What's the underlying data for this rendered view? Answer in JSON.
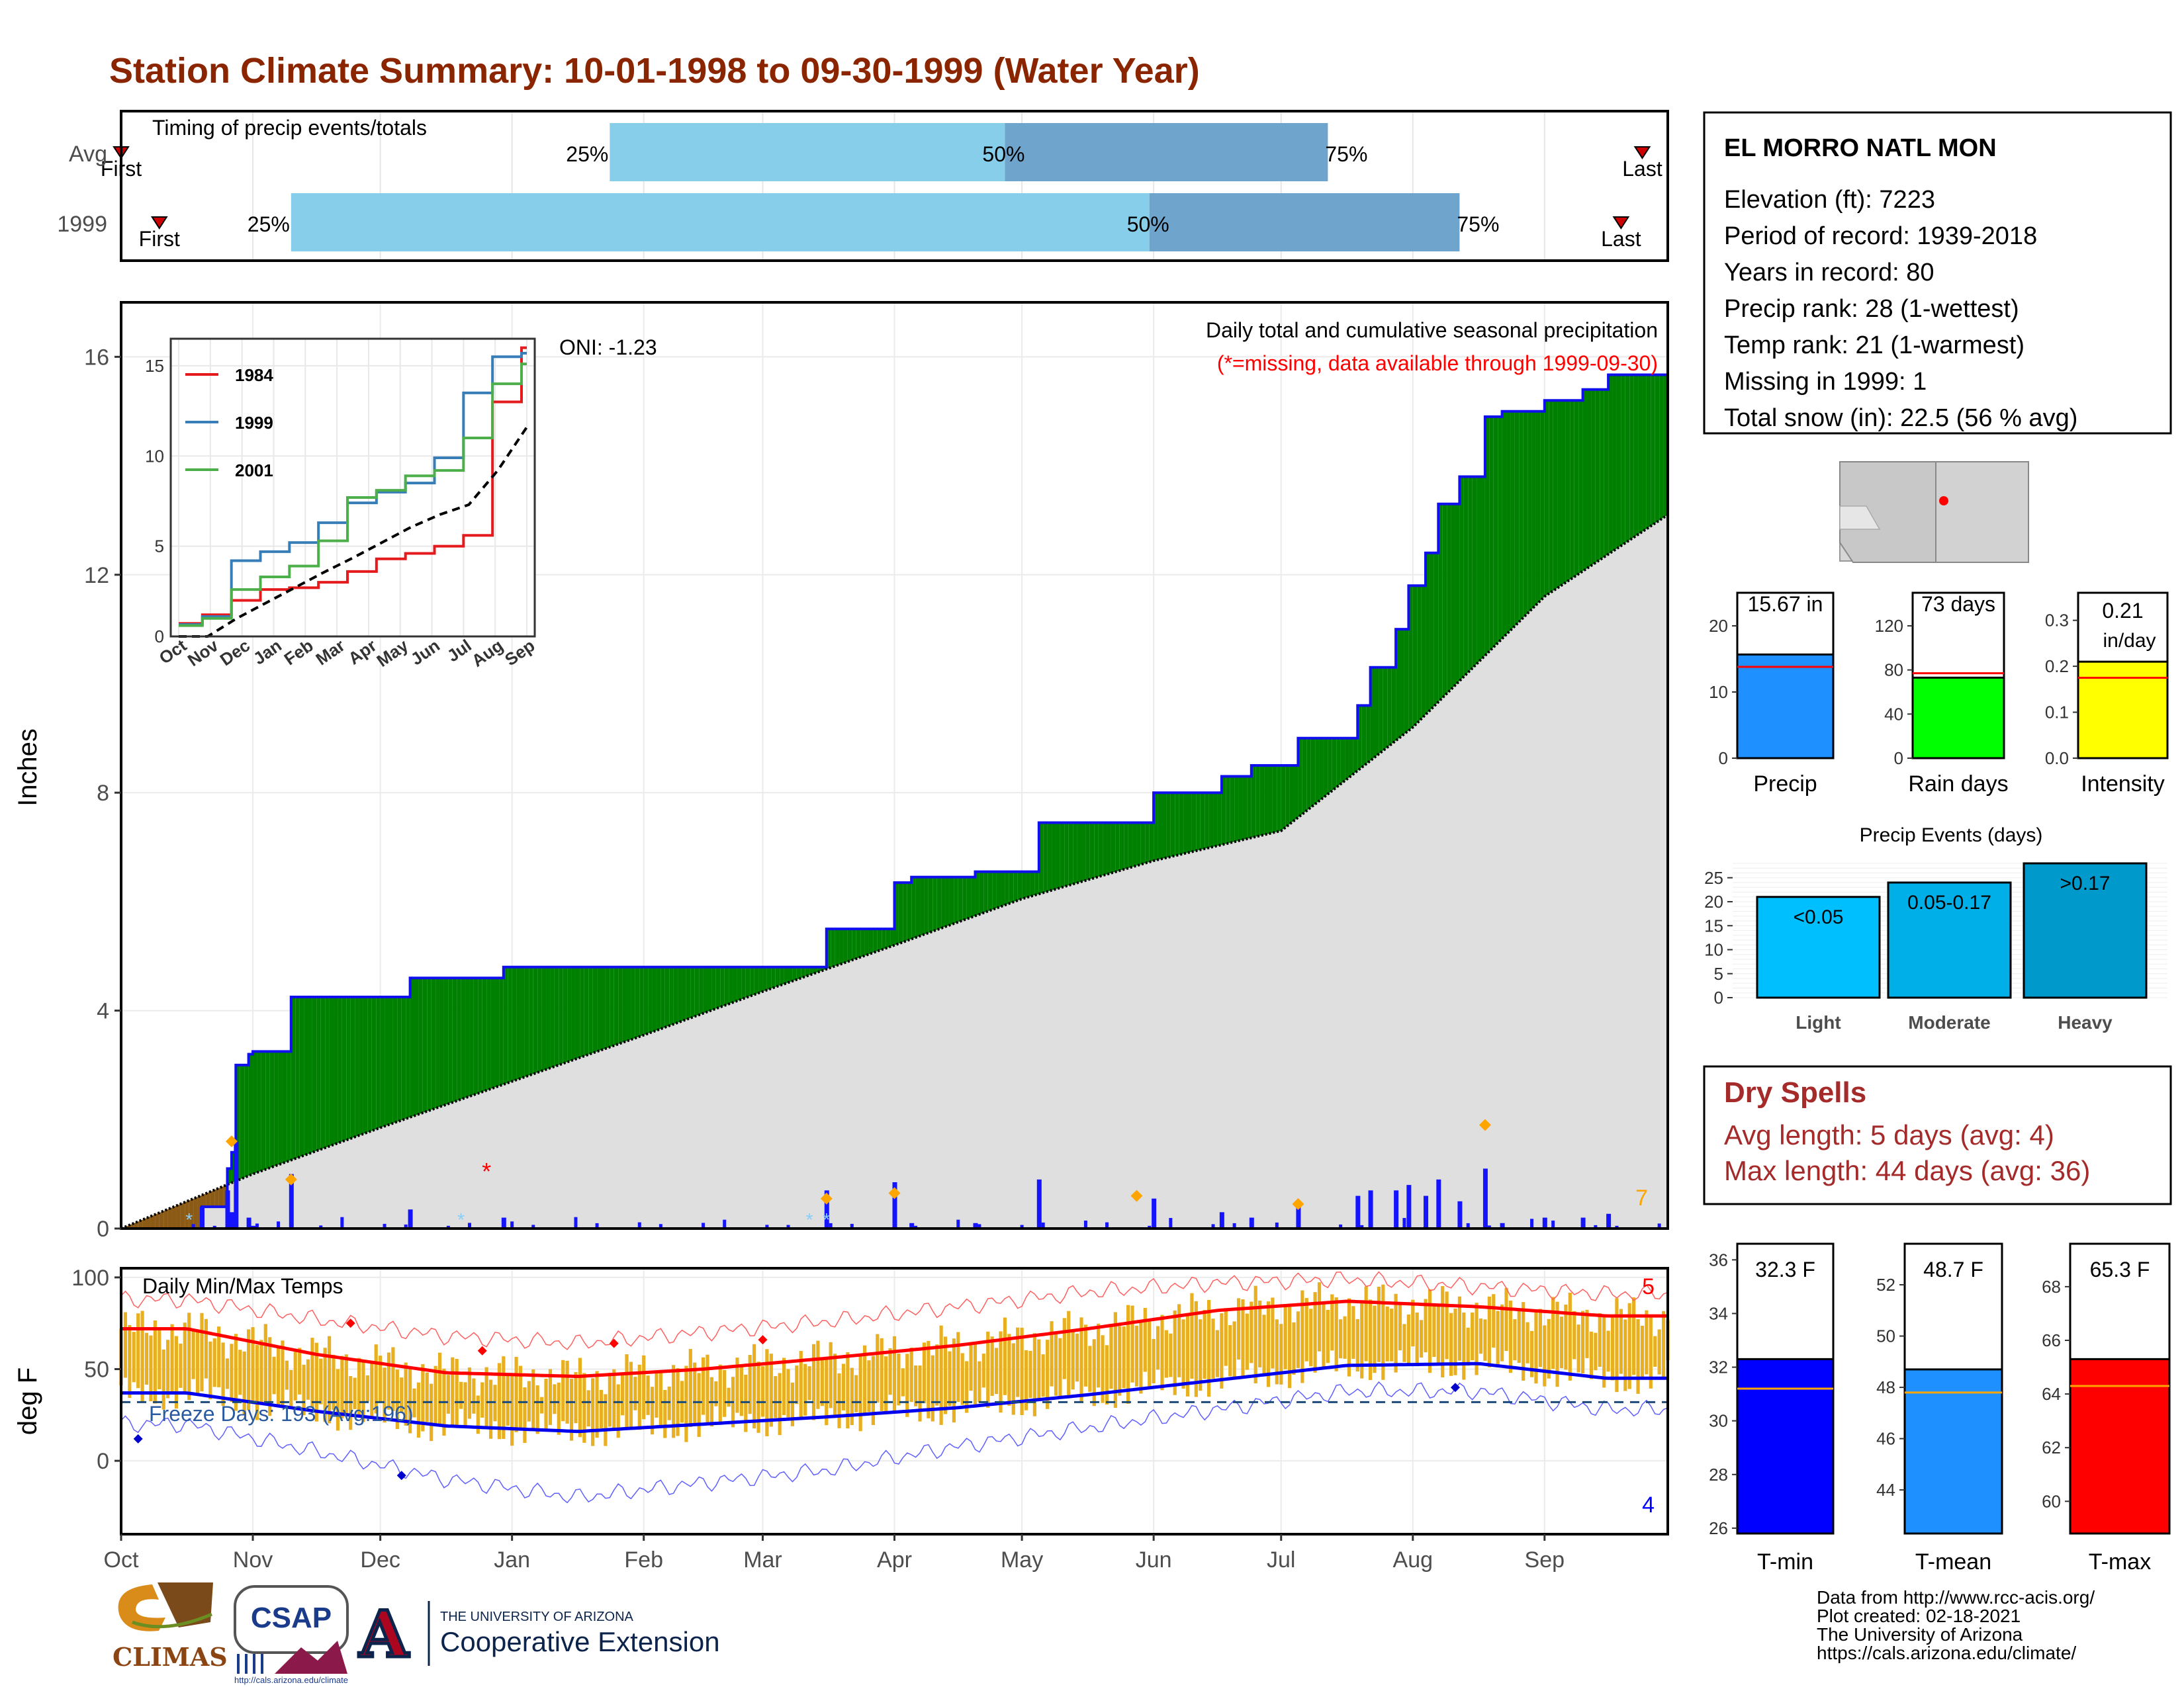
{
  "title": "Station Climate Summary: 10-01-1998 to 09-30-1999 (Water Year)",
  "colors": {
    "title": "#8b2500",
    "timing_light": "#87ceeb",
    "timing_dark": "#6fa4cc",
    "green_fill": "#008000",
    "avg_fill": "#dfdfdf",
    "brown_fill": "#8b5a14",
    "daily_bar": "#1414ff",
    "red": "#ff0000",
    "orange": "#ffa500",
    "temp_bar": "#e8b020",
    "dry_spell_text": "#a52a2a"
  },
  "timing": {
    "title": "Timing of precip events/totals",
    "rows": [
      {
        "label": "Avg",
        "first": "2000-10-01",
        "p25": "2001-01-24",
        "p50": "2001-04-27",
        "p75": "2001-07-12",
        "last": "2001-09-24",
        "first_label": "First",
        "last_label": "Last",
        "p25_label": "25%",
        "p50_label": "50%",
        "p75_label": "75%"
      },
      {
        "label": "1999",
        "first": "1998-10-10",
        "p25": "1998-11-10",
        "p50": "1999-05-31",
        "p75": "1999-08-12",
        "last": "1999-09-19",
        "first_label": "First",
        "last_label": "Last",
        "p25_label": "25%",
        "p50_label": "50%",
        "p75_label": "75%"
      }
    ]
  },
  "main": {
    "ylabel": "Inches",
    "yticks": [
      0,
      4,
      8,
      12,
      16
    ],
    "oni": "ONI: -1.23",
    "subtitle": "Daily total and cumulative seasonal precipitation",
    "note": "(*=missing, data available through 1999-09-30)",
    "count_label": "7"
  },
  "inset": {
    "yticks": [
      0,
      5,
      10,
      15
    ],
    "months": [
      "Oct",
      "Nov",
      "Dec",
      "Jan",
      "Feb",
      "Mar",
      "Apr",
      "May",
      "Jun",
      "Jul",
      "Aug",
      "Sep"
    ],
    "legend": [
      {
        "name": "1984",
        "color": "#e41a1c"
      },
      {
        "name": "1999",
        "color": "#377eb8"
      },
      {
        "name": "2001",
        "color": "#4daf4a"
      }
    ]
  },
  "temps": {
    "ylabel": "deg F",
    "title": "Daily Min/Max Temps",
    "yticks": [
      0,
      50,
      100
    ],
    "freeze_label": "Freeze Days: 193 (Avg:196)",
    "count_hi": "5",
    "count_lo": "4"
  },
  "x_months": [
    "Oct",
    "Nov",
    "Dec",
    "Jan",
    "Feb",
    "Mar",
    "Apr",
    "May",
    "Jun",
    "Jul",
    "Aug",
    "Sep"
  ],
  "station": {
    "name": "EL MORRO NATL MON",
    "lines": [
      "Elevation (ft): 7223",
      "Period of record: 1939-2018",
      "Years in record: 80",
      "Precip rank: 28 (1-wettest)",
      "Temp rank: 21 (1-warmest)",
      "Missing in 1999: 1",
      "Total snow (in): 22.5 (56 % avg)"
    ]
  },
  "small_bars": [
    {
      "xlabel": "Precip",
      "value_label": "15.67 in",
      "value": 15.67,
      "avg": 13.8,
      "ymax": 25,
      "ticks": [
        0,
        10,
        20
      ],
      "color": "#1e90ff"
    },
    {
      "xlabel": "Rain days",
      "value_label": "73 days",
      "value": 73,
      "avg": 77,
      "ymax": 150,
      "ticks": [
        0,
        40,
        80,
        120
      ],
      "color": "#00ff00"
    },
    {
      "xlabel": "Intensity",
      "value_label": "0.21",
      "value_label2": "in/day",
      "value": 0.21,
      "avg": 0.175,
      "ymax": 0.36,
      "ticks": [
        "0.0",
        "0.1",
        "0.2",
        "0.3"
      ],
      "color": "#ffff00"
    }
  ],
  "events": {
    "title": "Precip Events (days)",
    "yticks": [
      0,
      5,
      10,
      15,
      20,
      25
    ],
    "bars": [
      {
        "category": "Light",
        "label": "<0.05",
        "value": 21,
        "color": "#00bfff"
      },
      {
        "category": "Moderate",
        "label": "0.05-0.17",
        "value": 24,
        "color": "#00aee8"
      },
      {
        "category": "Heavy",
        "label": ">0.17",
        "value": 28,
        "color": "#0099cc"
      }
    ]
  },
  "dry_spells": {
    "title": "Dry Spells",
    "avg_line": "Avg length: 5 days (avg: 4)",
    "max_line": "Max length: 44 days (avg: 36)"
  },
  "temp_bars": [
    {
      "xlabel": "T-min",
      "value_label": "32.3 F",
      "value": 32.3,
      "avg": 31.2,
      "ymin": 25.8,
      "ymax": 36.6,
      "ticks": [
        26,
        28,
        30,
        32,
        34,
        36
      ],
      "color": "#0000ff"
    },
    {
      "xlabel": "T-mean",
      "value_label": "48.7 F",
      "value": 48.7,
      "avg": 47.8,
      "ymin": 42.3,
      "ymax": 53.6,
      "ticks": [
        44,
        46,
        48,
        50,
        52
      ],
      "color": "#1e90ff"
    },
    {
      "xlabel": "T-max",
      "value_label": "65.3 F",
      "value": 65.3,
      "avg": 64.3,
      "ymin": 58.8,
      "ymax": 69.6,
      "ticks": [
        60,
        62,
        64,
        66,
        68
      ],
      "color": "#ff0000"
    }
  ],
  "credits": [
    "Data from http://www.rcc-acis.org/",
    "Plot created: 02-18-2021",
    "The University of Arizona",
    "https://cals.arizona.edu/climate/"
  ],
  "logos": {
    "climas": "CLIMAS",
    "csap": "CSAP",
    "csap_url": "http://cals.arizona.edu/climate",
    "ua_small": "THE UNIVERSITY OF ARIZONA",
    "ua_big": "Cooperative Extension",
    "ua_letter": "A"
  },
  "chart_data": [
    {
      "type": "area",
      "title": "Daily total and cumulative seasonal precipitation",
      "ylabel": "Inches",
      "ylim": [
        0,
        17
      ],
      "x_range": [
        "1998-10-01",
        "1999-09-30"
      ],
      "series": [
        {
          "name": "1999",
          "x": [
            "1998-10-01",
            "1998-10-20",
            "1998-10-26",
            "1998-10-27",
            "1998-10-28",
            "1998-10-31",
            "1998-11-01",
            "1998-11-10",
            "1998-12-08",
            "1998-12-30",
            "1999-03-16",
            "1999-04-01",
            "1999-04-05",
            "1999-04-20",
            "1999-05-05",
            "1999-05-20",
            "1999-06-01",
            "1999-06-17",
            "1999-06-24",
            "1999-07-01",
            "1999-07-05",
            "1999-07-19",
            "1999-07-22",
            "1999-07-28",
            "1999-07-31",
            "1999-08-04",
            "1999-08-07",
            "1999-08-12",
            "1999-08-18",
            "1999-08-22",
            "1999-09-01",
            "1999-09-10",
            "1999-09-16",
            "1999-09-30"
          ],
          "values": [
            0,
            0.4,
            1.1,
            1.4,
            3.0,
            3.2,
            3.25,
            4.25,
            4.6,
            4.8,
            5.5,
            6.35,
            6.45,
            6.55,
            7.45,
            7.45,
            8.0,
            8.3,
            8.5,
            8.5,
            9.0,
            9.6,
            10.3,
            11.0,
            11.8,
            12.4,
            13.3,
            13.8,
            14.9,
            15.0,
            15.2,
            15.4,
            15.67,
            15.67
          ]
        },
        {
          "name": "Average",
          "x": [
            "1998-10-01",
            "1998-11-01",
            "1998-12-01",
            "1999-01-01",
            "1999-02-01",
            "1999-03-01",
            "1999-04-01",
            "1999-05-01",
            "1999-06-01",
            "1999-07-01",
            "1999-08-01",
            "1999-09-01",
            "1999-09-30"
          ],
          "values": [
            0,
            1.0,
            1.85,
            2.7,
            3.55,
            4.35,
            5.2,
            6.05,
            6.75,
            7.3,
            9.2,
            11.6,
            13.1
          ]
        }
      ],
      "daily_max_marks": [
        {
          "x": "1998-10-27",
          "value": 1.6
        },
        {
          "x": "1998-11-10",
          "value": 0.9
        },
        {
          "x": "1999-03-16",
          "value": 0.55
        },
        {
          "x": "1999-04-01",
          "value": 0.65
        },
        {
          "x": "1999-05-28",
          "value": 0.6
        },
        {
          "x": "1999-07-05",
          "value": 0.45
        },
        {
          "x": "1999-08-18",
          "value": 1.9
        }
      ],
      "missing": [
        {
          "x": "1998-12-26"
        }
      ]
    },
    {
      "type": "line",
      "title": "",
      "ylim": [
        0,
        17
      ],
      "categories": [
        "Oct",
        "Nov",
        "Dec",
        "Jan",
        "Feb",
        "Mar",
        "Apr",
        "May",
        "Jun",
        "Jul",
        "Aug",
        "Sep"
      ],
      "series": [
        {
          "name": "1984",
          "values": [
            1.2,
            2.0,
            2.6,
            2.7,
            3.0,
            3.6,
            4.3,
            4.6,
            5.0,
            5.6,
            13.0,
            16.0
          ]
        },
        {
          "name": "1999",
          "values": [
            1.1,
            4.2,
            4.7,
            5.2,
            6.3,
            7.4,
            8.0,
            8.5,
            9.9,
            13.5,
            15.5,
            15.7
          ]
        },
        {
          "name": "2001",
          "values": [
            1.0,
            2.6,
            3.3,
            3.9,
            5.3,
            7.7,
            8.1,
            8.9,
            9.2,
            11.0,
            14.0,
            15.1
          ]
        },
        {
          "name": "Average",
          "values": [
            0.0,
            1.0,
            1.85,
            2.7,
            3.55,
            4.35,
            5.2,
            6.05,
            6.75,
            7.3,
            9.2,
            11.6
          ]
        }
      ]
    },
    {
      "type": "line",
      "title": "Daily Min/Max Temps",
      "ylabel": "deg F",
      "ylim": [
        -40,
        105
      ],
      "categories": [
        "Oct",
        "Nov",
        "Dec",
        "Jan",
        "Feb",
        "Mar",
        "Apr",
        "May",
        "Jun",
        "Jul",
        "Aug",
        "Sep"
      ],
      "series": [
        {
          "name": "avg max",
          "values": [
            72,
            58,
            48,
            46,
            50,
            56,
            63,
            72,
            82,
            87,
            84,
            79
          ]
        },
        {
          "name": "avg min",
          "values": [
            37,
            27,
            19,
            16,
            20,
            24,
            29,
            36,
            44,
            52,
            53,
            45
          ]
        },
        {
          "name": "record max",
          "values": [
            88,
            77,
            68,
            64,
            70,
            76,
            84,
            92,
            97,
            99,
            95,
            91
          ]
        },
        {
          "name": "record min",
          "values": [
            20,
            5,
            -10,
            -20,
            -12,
            -5,
            8,
            18,
            28,
            38,
            38,
            28
          ]
        }
      ],
      "freeze_threshold": 32
    }
  ]
}
